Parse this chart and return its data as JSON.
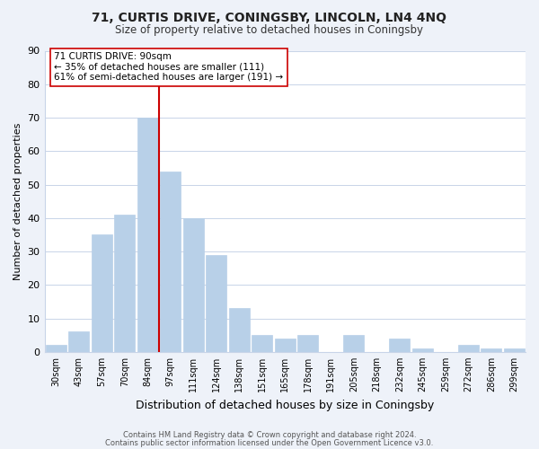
{
  "title1": "71, CURTIS DRIVE, CONINGSBY, LINCOLN, LN4 4NQ",
  "title2": "Size of property relative to detached houses in Coningsby",
  "xlabel": "Distribution of detached houses by size in Coningsby",
  "ylabel": "Number of detached properties",
  "bar_labels": [
    "30sqm",
    "43sqm",
    "57sqm",
    "70sqm",
    "84sqm",
    "97sqm",
    "111sqm",
    "124sqm",
    "138sqm",
    "151sqm",
    "165sqm",
    "178sqm",
    "191sqm",
    "205sqm",
    "218sqm",
    "232sqm",
    "245sqm",
    "259sqm",
    "272sqm",
    "286sqm",
    "299sqm"
  ],
  "bar_values": [
    2,
    6,
    35,
    41,
    70,
    54,
    40,
    29,
    13,
    5,
    4,
    5,
    0,
    5,
    0,
    4,
    1,
    0,
    2,
    1,
    1
  ],
  "bar_color": "#b8d0e8",
  "bar_edge_color": "#b8d0e8",
  "ylim": [
    0,
    90
  ],
  "yticks": [
    0,
    10,
    20,
    30,
    40,
    50,
    60,
    70,
    80,
    90
  ],
  "property_line_x": 4.5,
  "property_line_color": "#cc0000",
  "annotation_line1": "71 CURTIS DRIVE: 90sqm",
  "annotation_line2": "← 35% of detached houses are smaller (111)",
  "annotation_line3": "61% of semi-detached houses are larger (191) →",
  "footer1": "Contains HM Land Registry data © Crown copyright and database right 2024.",
  "footer2": "Contains public sector information licensed under the Open Government Licence v3.0.",
  "bg_color": "#eef2f9",
  "plot_bg_color": "#ffffff",
  "grid_color": "#c8d4e8"
}
